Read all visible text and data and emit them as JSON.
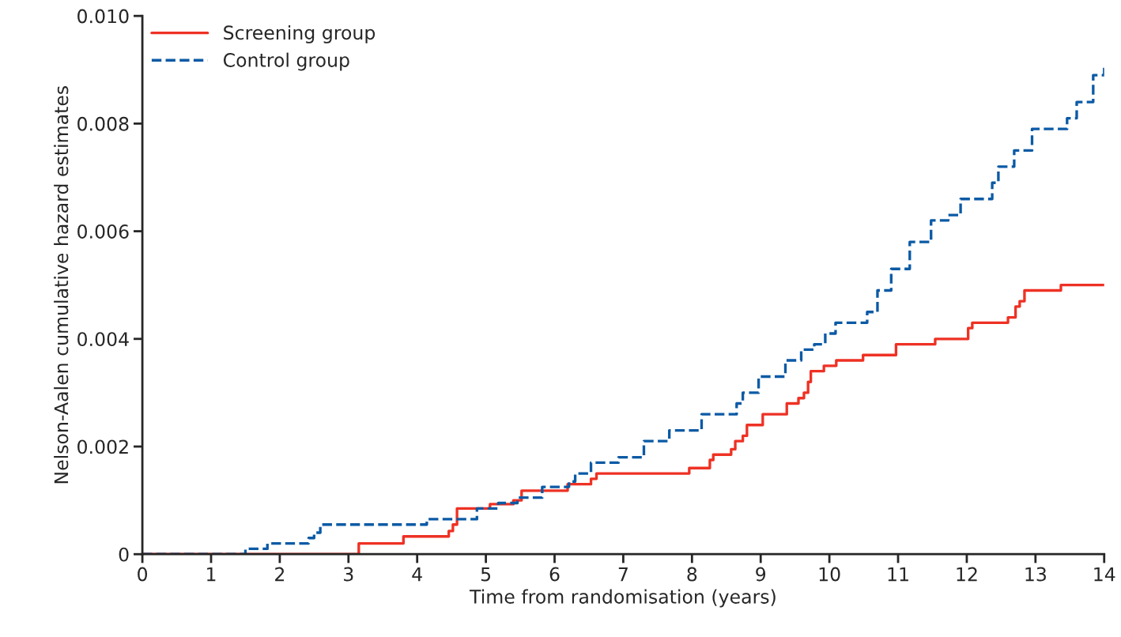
{
  "chart_data": {
    "type": "step",
    "xlabel": "Time from randomisation (years)",
    "ylabel": "Nelson-Aalen cumulative hazard estimates",
    "xlim": [
      0,
      14
    ],
    "xticks": [
      0,
      1,
      2,
      3,
      4,
      5,
      6,
      7,
      8,
      9,
      10,
      11,
      12,
      13,
      14
    ],
    "ylim": [
      0,
      0.01
    ],
    "yticks": [
      0,
      0.002,
      0.004,
      0.006,
      0.008,
      {
        "value": 0.01,
        "label": "0.010"
      }
    ],
    "grid": false,
    "legend": "top left",
    "series": [
      {
        "name": "Screening group",
        "color": "#ee3124",
        "line_style": "solid",
        "x": [
          0,
          3.15,
          3.8,
          4.46,
          4.52,
          4.58,
          5.06,
          5.4,
          5.52,
          6.19,
          6.53,
          6.61,
          7.96,
          8.26,
          8.31,
          8.57,
          8.63,
          8.74,
          8.8,
          9.03,
          9.38,
          9.55,
          9.63,
          9.69,
          9.73,
          9.92,
          10.1,
          10.49,
          10.97,
          11.54,
          12.02,
          12.08,
          12.6,
          12.71,
          12.77,
          12.84,
          13.37,
          14
        ],
        "values": [
          0,
          0.0002,
          0.00033,
          0.00043,
          0.00055,
          0.00085,
          0.00093,
          0.001,
          0.00118,
          0.0013,
          0.0014,
          0.0015,
          0.0016,
          0.00175,
          0.00185,
          0.00195,
          0.0021,
          0.0022,
          0.0024,
          0.0026,
          0.0028,
          0.0029,
          0.003,
          0.0032,
          0.0034,
          0.0035,
          0.0036,
          0.0037,
          0.0039,
          0.004,
          0.0042,
          0.0043,
          0.0044,
          0.0046,
          0.0047,
          0.0049,
          0.005,
          0.005
        ]
      },
      {
        "name": "Control group",
        "color": "#0b5aa5",
        "line_style": "dashed",
        "x": [
          0,
          1.5,
          1.82,
          2.42,
          2.5,
          2.59,
          4.14,
          4.87,
          5.18,
          5.46,
          5.82,
          6.21,
          6.3,
          6.53,
          6.93,
          7.3,
          7.67,
          8.14,
          8.65,
          8.74,
          8.97,
          9.36,
          9.59,
          9.78,
          9.94,
          10.09,
          10.55,
          10.7,
          10.9,
          11.17,
          11.48,
          11.73,
          11.91,
          12.37,
          12.46,
          12.69,
          12.95,
          13.46,
          13.6,
          13.84,
          14
        ],
        "values": [
          0,
          0.0001,
          0.0002,
          0.0003,
          0.0004,
          0.00055,
          0.00065,
          0.00085,
          0.00095,
          0.00105,
          0.00125,
          0.00135,
          0.0015,
          0.0017,
          0.0018,
          0.0021,
          0.0023,
          0.0026,
          0.0028,
          0.003,
          0.0033,
          0.0036,
          0.0038,
          0.0039,
          0.0041,
          0.0043,
          0.0045,
          0.0049,
          0.0053,
          0.0058,
          0.0062,
          0.0063,
          0.0066,
          0.0069,
          0.0072,
          0.0075,
          0.0079,
          0.0081,
          0.0084,
          0.0089,
          0.0091
        ]
      }
    ]
  }
}
